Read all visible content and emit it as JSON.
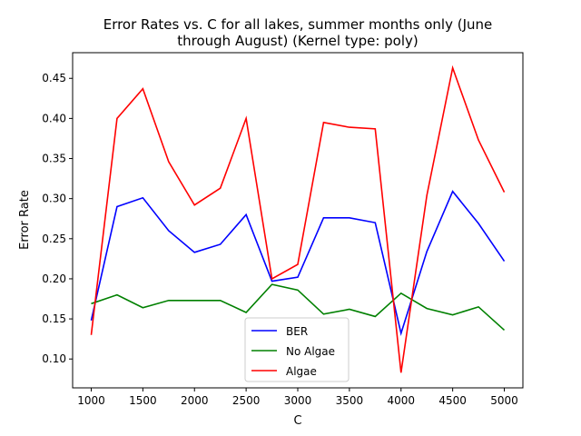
{
  "chart_data": {
    "type": "line",
    "title": "Error Rates vs. C for all lakes, summer months only (June through August) (Kernel type: poly)",
    "title_lines": [
      "Error Rates vs. C for all lakes, summer months only (June",
      "through August) (Kernel type: poly)"
    ],
    "xlabel": "C",
    "ylabel": "Error Rate",
    "xlim": [
      820,
      5180
    ],
    "ylim": [
      0.064,
      0.482
    ],
    "xticks": [
      1000,
      1500,
      2000,
      2500,
      3000,
      3500,
      4000,
      4500,
      5000
    ],
    "yticks": [
      0.1,
      0.15,
      0.2,
      0.25,
      0.3,
      0.35,
      0.4,
      0.45
    ],
    "ytick_labels": [
      "0.10",
      "0.15",
      "0.20",
      "0.25",
      "0.30",
      "0.35",
      "0.40",
      "0.45"
    ],
    "grid": false,
    "legend_position": "bottom-center",
    "x": [
      1000,
      1250,
      1500,
      1750,
      2000,
      2250,
      2500,
      2750,
      3000,
      3250,
      3500,
      3750,
      4000,
      4250,
      4500,
      4750,
      5000
    ],
    "series": [
      {
        "name": "BER",
        "color": "#0000ff",
        "values": [
          0.148,
          0.29,
          0.301,
          0.26,
          0.233,
          0.243,
          0.28,
          0.197,
          0.202,
          0.276,
          0.276,
          0.27,
          0.132,
          0.234,
          0.309,
          0.269,
          0.222
        ]
      },
      {
        "name": "No Algae",
        "color": "#008000",
        "values": [
          0.169,
          0.18,
          0.164,
          0.173,
          0.173,
          0.173,
          0.158,
          0.193,
          0.186,
          0.156,
          0.162,
          0.153,
          0.182,
          0.163,
          0.155,
          0.165,
          0.136
        ]
      },
      {
        "name": "Algae",
        "color": "#ff0000",
        "values": [
          0.13,
          0.4,
          0.437,
          0.346,
          0.292,
          0.313,
          0.4,
          0.2,
          0.218,
          0.395,
          0.389,
          0.387,
          0.083,
          0.304,
          0.463,
          0.373,
          0.308
        ]
      }
    ]
  }
}
